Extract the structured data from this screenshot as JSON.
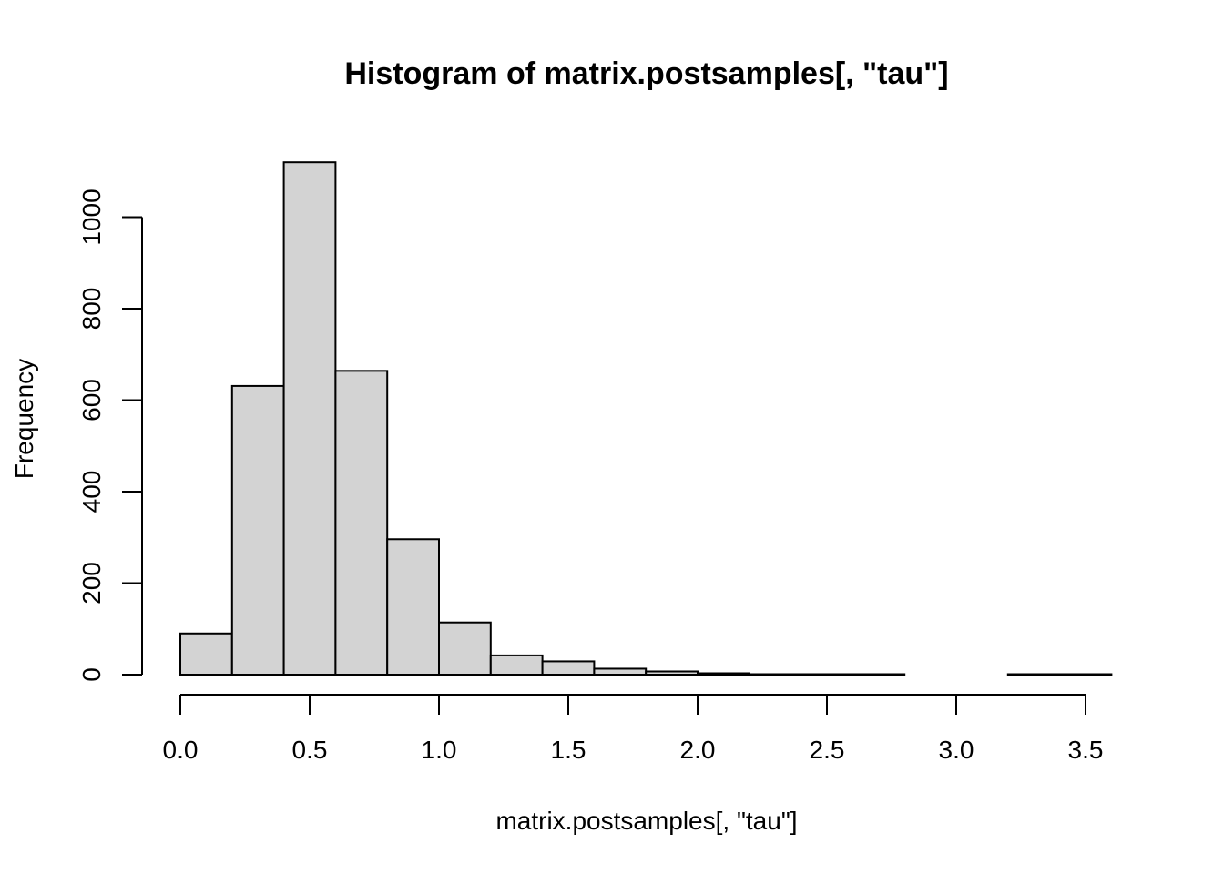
{
  "chart_data": {
    "type": "bar",
    "title": "Histogram of matrix.postsamples[, \"tau\"]",
    "xlabel": "matrix.postsamples[, \"tau\"]",
    "ylabel": "Frequency",
    "bin_edges": [
      0.0,
      0.2,
      0.4,
      0.6,
      0.8,
      1.0,
      1.2,
      1.4,
      1.6,
      1.8,
      2.0,
      2.2,
      2.4,
      2.6,
      2.8,
      3.0,
      3.2,
      3.4,
      3.6
    ],
    "values": [
      90,
      631,
      1120,
      664,
      296,
      114,
      42,
      29,
      13,
      7,
      3,
      1,
      1,
      1,
      0,
      0,
      1,
      1
    ],
    "xlim": [
      0,
      3.6
    ],
    "ylim": [
      0,
      1120
    ],
    "x_ticks": [
      "0.0",
      "0.5",
      "1.0",
      "1.5",
      "2.0",
      "2.5",
      "3.0",
      "3.5"
    ],
    "y_ticks": [
      "0",
      "200",
      "400",
      "600",
      "800",
      "1000"
    ],
    "bar_fill": "#d3d3d3",
    "bar_stroke": "#000000",
    "grid": false
  }
}
